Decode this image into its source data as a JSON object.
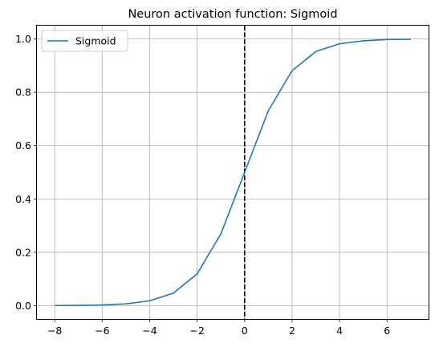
{
  "chart_data": {
    "type": "line",
    "title": "Neuron activation function: Sigmoid",
    "xlabel": "",
    "ylabel": "",
    "xlim": [
      -8.75,
      7.75
    ],
    "ylim": [
      -0.05,
      1.05
    ],
    "xticks": [
      -8,
      -6,
      -4,
      -2,
      0,
      2,
      4,
      6
    ],
    "xtick_labels": [
      "−8",
      "−6",
      "−4",
      "−2",
      "0",
      "2",
      "4",
      "6"
    ],
    "yticks": [
      0.0,
      0.2,
      0.4,
      0.6,
      0.8,
      1.0
    ],
    "ytick_labels": [
      "0.0",
      "0.2",
      "0.4",
      "0.6",
      "0.8",
      "1.0"
    ],
    "grid": true,
    "legend_position": "upper-left",
    "series": [
      {
        "name": "Sigmoid",
        "color": "#1f77b4",
        "x": [
          -8,
          -7,
          -6,
          -5,
          -4,
          -3,
          -2,
          -1,
          0,
          1,
          2,
          3,
          4,
          5,
          6,
          7
        ],
        "y": [
          0.0003,
          0.0009,
          0.0025,
          0.0067,
          0.018,
          0.047,
          0.119,
          0.269,
          0.5,
          0.731,
          0.881,
          0.953,
          0.982,
          0.993,
          0.998,
          0.999
        ]
      }
    ],
    "reference_line": {
      "axis": "x",
      "value": 0,
      "style": "dashed",
      "color": "#000000"
    }
  }
}
